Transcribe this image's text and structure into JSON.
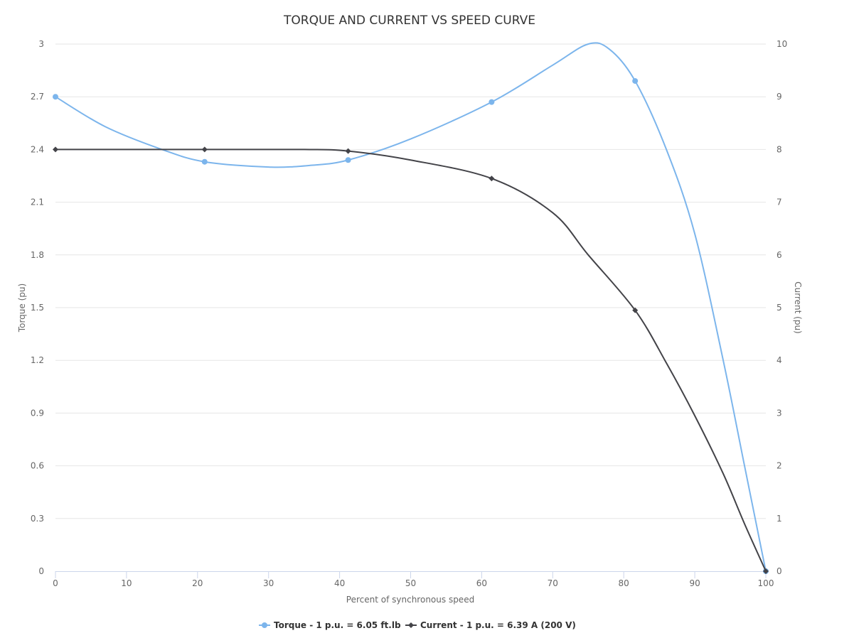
{
  "chart_data": {
    "type": "line",
    "title": "TORQUE AND CURRENT VS SPEED CURVE",
    "xlabel": "Percent of synchronous speed",
    "ylabel": "Torque (pu)",
    "y2label": "Current (pu)",
    "xlim": [
      0,
      100
    ],
    "ylim": [
      0,
      3
    ],
    "y2lim": [
      0,
      10
    ],
    "x_ticks": [
      "0",
      "10",
      "20",
      "30",
      "40",
      "50",
      "60",
      "70",
      "80",
      "90",
      "100"
    ],
    "y_ticks": [
      "0",
      "0.3",
      "0.6",
      "0.9",
      "1.2",
      "1.5",
      "1.8",
      "2.1",
      "2.4",
      "2.7",
      "3"
    ],
    "y2_ticks": [
      "0",
      "1",
      "2",
      "3",
      "4",
      "5",
      "6",
      "7",
      "8",
      "9",
      "10"
    ],
    "grid": true,
    "legend_position": "bottom-center",
    "series": [
      {
        "name": "Torque - 1 p.u. = 6.05 ft.lb",
        "axis": "left",
        "color": "#7cb5ec",
        "marker": "circle",
        "points": [
          [
            0,
            2.7
          ],
          [
            21,
            2.33
          ],
          [
            41.2,
            2.34
          ],
          [
            61.4,
            2.67
          ],
          [
            81.6,
            2.79
          ],
          [
            100,
            0
          ]
        ],
        "curve": [
          [
            0,
            2.7
          ],
          [
            7,
            2.53
          ],
          [
            15,
            2.4
          ],
          [
            21,
            2.33
          ],
          [
            30,
            2.3
          ],
          [
            36,
            2.31
          ],
          [
            41.2,
            2.34
          ],
          [
            50,
            2.46
          ],
          [
            61.4,
            2.67
          ],
          [
            70,
            2.88
          ],
          [
            75,
            3.0
          ],
          [
            78,
            2.97
          ],
          [
            81.6,
            2.79
          ],
          [
            86,
            2.4
          ],
          [
            90,
            1.92
          ],
          [
            94,
            1.2
          ],
          [
            97,
            0.6
          ],
          [
            100,
            0
          ]
        ]
      },
      {
        "name": "Current - 1 p.u. = 6.39 A (200 V)",
        "axis": "right",
        "color": "#434348",
        "marker": "diamond",
        "points": [
          [
            0,
            8
          ],
          [
            21,
            8
          ],
          [
            41.2,
            7.97
          ],
          [
            61.4,
            7.45
          ],
          [
            81.6,
            4.95
          ],
          [
            100,
            0
          ]
        ],
        "curve": [
          [
            0,
            8
          ],
          [
            21,
            8
          ],
          [
            35,
            8
          ],
          [
            41.2,
            7.97
          ],
          [
            50,
            7.8
          ],
          [
            61.4,
            7.45
          ],
          [
            70,
            6.8
          ],
          [
            75,
            6.0
          ],
          [
            81.6,
            4.95
          ],
          [
            86,
            3.95
          ],
          [
            90,
            2.95
          ],
          [
            94,
            1.85
          ],
          [
            97,
            0.9
          ],
          [
            100,
            0
          ]
        ]
      }
    ]
  }
}
